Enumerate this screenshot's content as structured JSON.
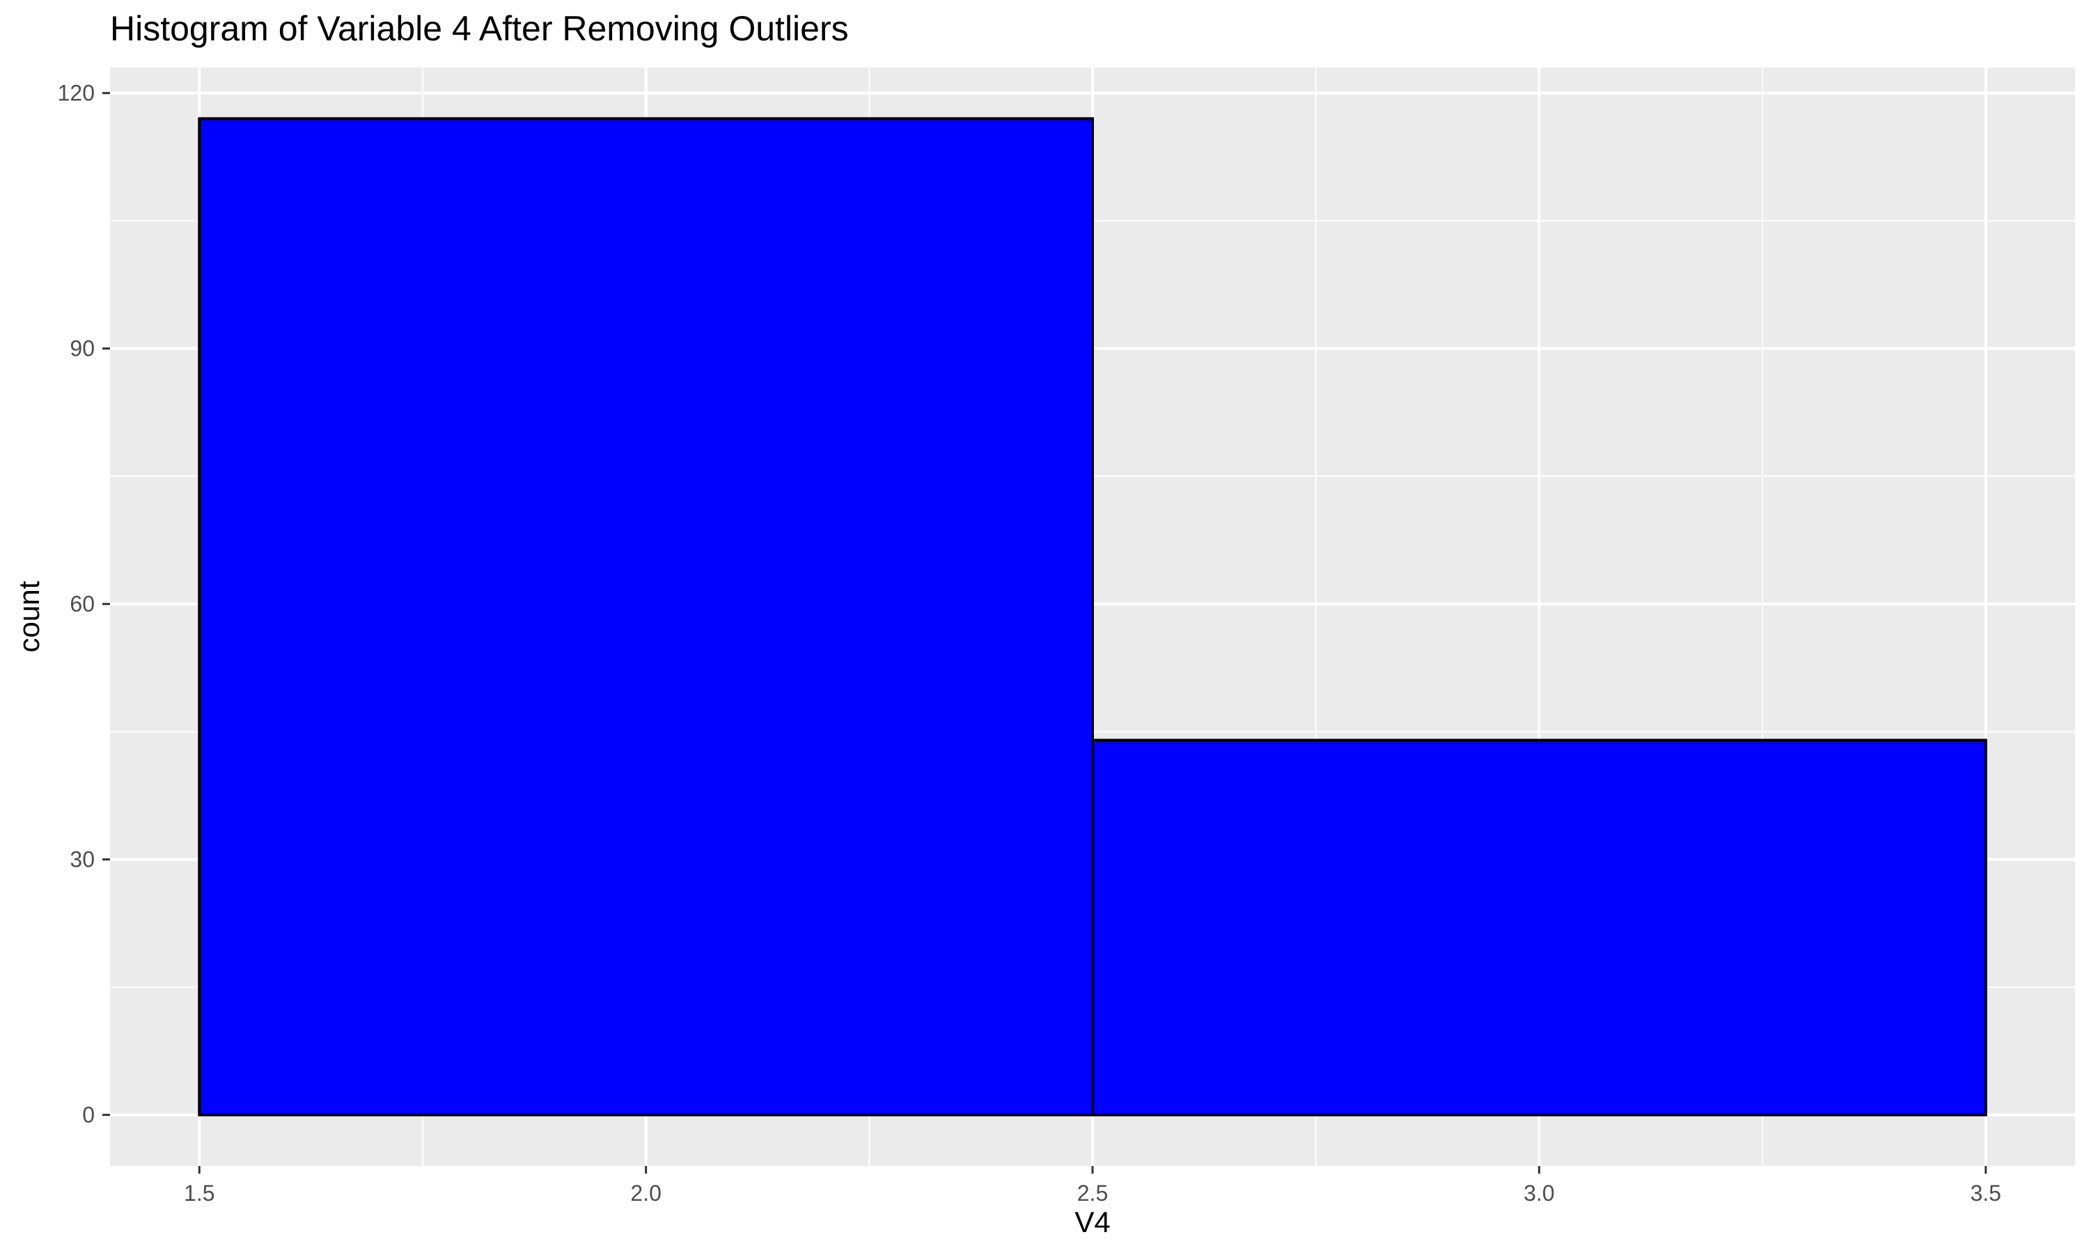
{
  "chart_data": {
    "type": "bar",
    "subtype": "histogram",
    "title": "Histogram of Variable 4 After Removing Outliers",
    "xlabel": "V4",
    "ylabel": "count",
    "bins": [
      {
        "x_start": 1.5,
        "x_end": 2.5,
        "count": 117
      },
      {
        "x_start": 2.5,
        "x_end": 3.5,
        "count": 44
      }
    ],
    "xlim": [
      1.4,
      3.6
    ],
    "ylim": [
      -6,
      123
    ],
    "x_ticks": [
      1.5,
      2.0,
      2.5,
      3.0,
      3.5
    ],
    "x_tick_labels": [
      "1.5",
      "2.0",
      "2.5",
      "3.0",
      "3.5"
    ],
    "y_ticks": [
      0,
      30,
      60,
      90,
      120
    ],
    "y_tick_labels": [
      "0",
      "30",
      "60",
      "90",
      "120"
    ],
    "x_minor_breaks": [
      1.75,
      2.25,
      2.75,
      3.25
    ],
    "y_minor_breaks": [
      15,
      45,
      75,
      105
    ],
    "grid": true,
    "legend": "none",
    "colors": {
      "bar_fill": "#0000ff",
      "bar_outline": "#000000",
      "panel_background": "#ebebeb",
      "grid_line": "#ffffff"
    }
  }
}
